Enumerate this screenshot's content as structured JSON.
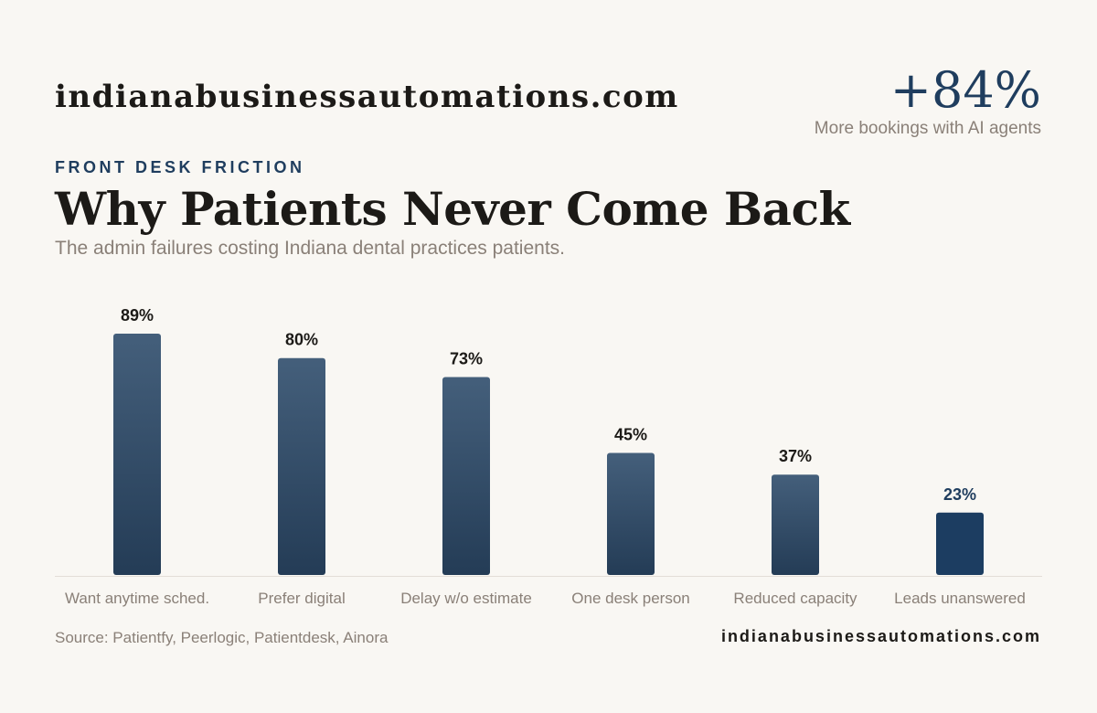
{
  "header": {
    "brand": "indianabusinessautomations.com",
    "stat_value": "+84%",
    "stat_caption": "More bookings with AI agents",
    "eyebrow": "FRONT DESK FRICTION",
    "title": "Why Patients Never Come Back",
    "subtitle": "The admin failures costing Indiana dental practices patients."
  },
  "footer": {
    "source": "Source: Patientfy, Peerlogic, Patientdesk, Ainora",
    "brand": "indianabusinessautomations.com"
  },
  "colors": {
    "bar_top": "#445f7b",
    "bar_bottom": "#243c56",
    "bar_highlight": "#1c3d61",
    "accent": "#1f3d5e",
    "label_dark": "#1c1a17",
    "muted": "#8a8078",
    "axis": "#e3ded7"
  },
  "chart_data": {
    "type": "bar",
    "categories": [
      "Want anytime sched.",
      "Prefer digital",
      "Delay w/o estimate",
      "One desk person",
      "Reduced capacity",
      "Leads unanswered"
    ],
    "values": [
      89,
      80,
      73,
      45,
      37,
      23
    ],
    "value_labels": [
      "89%",
      "80%",
      "73%",
      "45%",
      "37%",
      "23%"
    ],
    "unit": "%",
    "highlight_index": 5,
    "ylim": [
      0,
      89
    ],
    "grid": false,
    "legend": "none",
    "xlabel": "",
    "ylabel": ""
  }
}
